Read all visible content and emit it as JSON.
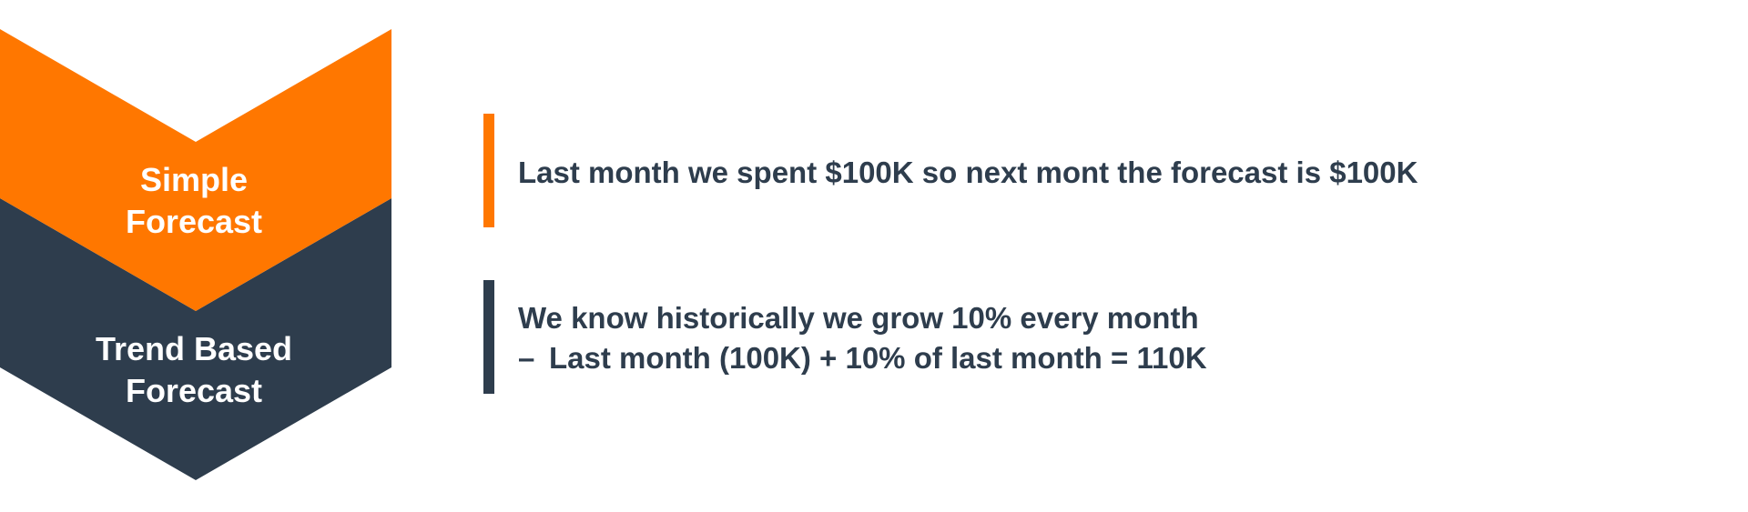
{
  "colors": {
    "orange": "#ff7700",
    "navy": "#2e3d4d",
    "white": "#ffffff"
  },
  "steps": [
    {
      "title_line1": "Simple",
      "title_line2": "Forecast",
      "description": "Last month we spent $100K so next mont the forecast is $100K"
    },
    {
      "title_line1": "Trend Based",
      "title_line2": "Forecast",
      "description_line1": "We know historically we grow 10% every month",
      "description_dash": "–",
      "description_line2": "Last month (100K) + 10% of last month = 110K"
    }
  ]
}
